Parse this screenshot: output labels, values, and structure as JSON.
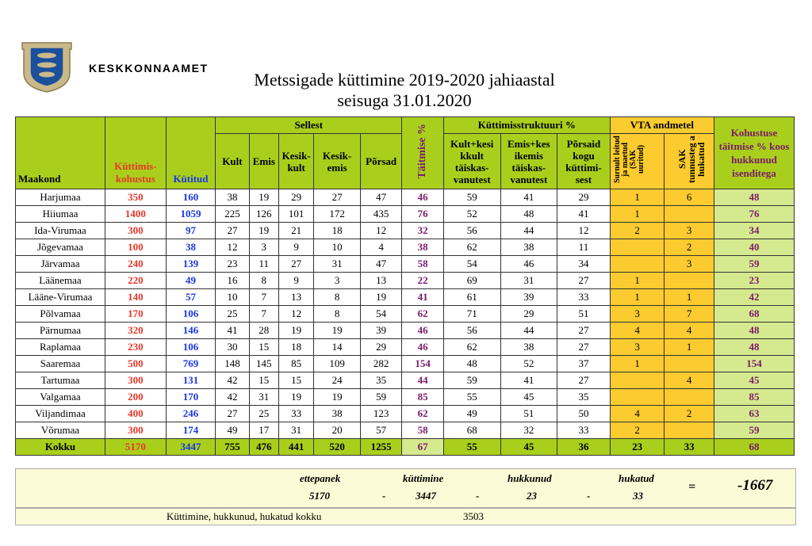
{
  "header": {
    "org_name": "KESKKONNAAMET",
    "title_line1": "Metssigade küttimine 2019-2020 jahiaastal",
    "title_line2": "seisuga 31.01.2020"
  },
  "colors": {
    "header_green": "#a9cf1c",
    "light_green": "#d5e98e",
    "orange": "#fbcb2f",
    "red": "#e8372a",
    "blue": "#1936e6",
    "purple": "#7b1a6b",
    "summary_bg": "#fcfbd7"
  },
  "table": {
    "group_headers": {
      "sellest": "Sellest",
      "kyttimisstruktuur": "Küttimisstruktuuri %",
      "vta": "VTA andmetel"
    },
    "columns": {
      "maakond": "Maakond",
      "kohustus": "Küttimis- kohustus",
      "kytitud": "Kütitud",
      "kult": "Kult",
      "emis": "Emis",
      "keskikult": "Kesik- kult",
      "keskiemis": "Kesik- emis",
      "porsad": "Põrsad",
      "taitmise": "Täitmise %",
      "kult_kesikult": "Kult+kesi kkult täiskas- vanutest",
      "emis_keskiemis": "Emis+kes ikemis täiskas- vanutest",
      "porsaid": "Põrsaid kogu küttimi- sest",
      "surnult": "Surnult leitud ja maetud (SAK uuritud)",
      "sak_hukatud": "SAK tunnusteg a hukatud",
      "kohustuse_taitmise": "Kohustuse täitmise % koos hukkunud isenditega"
    },
    "rows": [
      {
        "maakond": "Harjumaa",
        "kohustus": "350",
        "kytitud": "160",
        "kult": "38",
        "emis": "19",
        "keskikult": "29",
        "keskiemis": "27",
        "porsad": "47",
        "taitmise": "46",
        "kk": "59",
        "ek": "41",
        "po": "29",
        "surnult": "1",
        "hukatud": "6",
        "kohustus_pct": "48"
      },
      {
        "maakond": "Hiiumaa",
        "kohustus": "1400",
        "kytitud": "1059",
        "kult": "225",
        "emis": "126",
        "keskikult": "101",
        "keskiemis": "172",
        "porsad": "435",
        "taitmise": "76",
        "kk": "52",
        "ek": "48",
        "po": "41",
        "surnult": "1",
        "hukatud": "",
        "kohustus_pct": "76"
      },
      {
        "maakond": "Ida-Virumaa",
        "kohustus": "300",
        "kytitud": "97",
        "kult": "27",
        "emis": "19",
        "keskikult": "21",
        "keskiemis": "18",
        "porsad": "12",
        "taitmise": "32",
        "kk": "56",
        "ek": "44",
        "po": "12",
        "surnult": "2",
        "hukatud": "3",
        "kohustus_pct": "34"
      },
      {
        "maakond": "Jõgevamaa",
        "kohustus": "100",
        "kytitud": "38",
        "kult": "12",
        "emis": "3",
        "keskikult": "9",
        "keskiemis": "10",
        "porsad": "4",
        "taitmise": "38",
        "kk": "62",
        "ek": "38",
        "po": "11",
        "surnult": "",
        "hukatud": "2",
        "kohustus_pct": "40"
      },
      {
        "maakond": "Järvamaa",
        "kohustus": "240",
        "kytitud": "139",
        "kult": "23",
        "emis": "11",
        "keskikult": "27",
        "keskiemis": "31",
        "porsad": "47",
        "taitmise": "58",
        "kk": "54",
        "ek": "46",
        "po": "34",
        "surnult": "",
        "hukatud": "3",
        "kohustus_pct": "59"
      },
      {
        "maakond": "Läänemaa",
        "kohustus": "220",
        "kytitud": "49",
        "kult": "16",
        "emis": "8",
        "keskikult": "9",
        "keskiemis": "3",
        "porsad": "13",
        "taitmise": "22",
        "kk": "69",
        "ek": "31",
        "po": "27",
        "surnult": "1",
        "hukatud": "",
        "kohustus_pct": "23"
      },
      {
        "maakond": "Lääne-Virumaa",
        "kohustus": "140",
        "kytitud": "57",
        "kult": "10",
        "emis": "7",
        "keskikult": "13",
        "keskiemis": "8",
        "porsad": "19",
        "taitmise": "41",
        "kk": "61",
        "ek": "39",
        "po": "33",
        "surnult": "1",
        "hukatud": "1",
        "kohustus_pct": "42"
      },
      {
        "maakond": "Põlvamaa",
        "kohustus": "170",
        "kytitud": "106",
        "kult": "25",
        "emis": "7",
        "keskikult": "12",
        "keskiemis": "8",
        "porsad": "54",
        "taitmise": "62",
        "kk": "71",
        "ek": "29",
        "po": "51",
        "surnult": "3",
        "hukatud": "7",
        "kohustus_pct": "68"
      },
      {
        "maakond": "Pärnumaa",
        "kohustus": "320",
        "kytitud": "146",
        "kult": "41",
        "emis": "28",
        "keskikult": "19",
        "keskiemis": "19",
        "porsad": "39",
        "taitmise": "46",
        "kk": "56",
        "ek": "44",
        "po": "27",
        "surnult": "4",
        "hukatud": "4",
        "kohustus_pct": "48"
      },
      {
        "maakond": "Raplamaa",
        "kohustus": "230",
        "kytitud": "106",
        "kult": "30",
        "emis": "15",
        "keskikult": "18",
        "keskiemis": "14",
        "porsad": "29",
        "taitmise": "46",
        "kk": "62",
        "ek": "38",
        "po": "27",
        "surnult": "3",
        "hukatud": "1",
        "kohustus_pct": "48"
      },
      {
        "maakond": "Saaremaa",
        "kohustus": "500",
        "kytitud": "769",
        "kult": "148",
        "emis": "145",
        "keskikult": "85",
        "keskiemis": "109",
        "porsad": "282",
        "taitmise": "154",
        "kk": "48",
        "ek": "52",
        "po": "37",
        "surnult": "1",
        "hukatud": "",
        "kohustus_pct": "154"
      },
      {
        "maakond": "Tartumaa",
        "kohustus": "300",
        "kytitud": "131",
        "kult": "42",
        "emis": "15",
        "keskikult": "15",
        "keskiemis": "24",
        "porsad": "35",
        "taitmise": "44",
        "kk": "59",
        "ek": "41",
        "po": "27",
        "surnult": "",
        "hukatud": "4",
        "kohustus_pct": "45"
      },
      {
        "maakond": "Valgamaa",
        "kohustus": "200",
        "kytitud": "170",
        "kult": "42",
        "emis": "31",
        "keskikult": "19",
        "keskiemis": "19",
        "porsad": "59",
        "taitmise": "85",
        "kk": "55",
        "ek": "45",
        "po": "35",
        "surnult": "",
        "hukatud": "",
        "kohustus_pct": "85"
      },
      {
        "maakond": "Viljandimaa",
        "kohustus": "400",
        "kytitud": "246",
        "kult": "27",
        "emis": "25",
        "keskikult": "33",
        "keskiemis": "38",
        "porsad": "123",
        "taitmise": "62",
        "kk": "49",
        "ek": "51",
        "po": "50",
        "surnult": "4",
        "hukatud": "2",
        "kohustus_pct": "63"
      },
      {
        "maakond": "Võrumaa",
        "kohustus": "300",
        "kytitud": "174",
        "kult": "49",
        "emis": "17",
        "keskikult": "31",
        "keskiemis": "20",
        "porsad": "57",
        "taitmise": "58",
        "kk": "68",
        "ek": "32",
        "po": "33",
        "surnult": "2",
        "hukatud": "",
        "kohustus_pct": "59"
      }
    ],
    "total": {
      "maakond": "Kokku",
      "kohustus": "5170",
      "kytitud": "3447",
      "kult": "755",
      "emis": "476",
      "keskikult": "441",
      "keskiemis": "520",
      "porsad": "1255",
      "taitmise": "67",
      "kk": "55",
      "ek": "45",
      "po": "36",
      "surnult": "23",
      "hukatud": "33",
      "kohustus_pct": "68"
    }
  },
  "summary": {
    "ettepanek_label": "ettepanek",
    "ettepanek_value": "5170",
    "kyttimine_label": "küttimine",
    "kyttimine_value": "3447",
    "hukkunud_label": "hukkunud",
    "hukkunud_value": "23",
    "hukatud_label": "hukatud",
    "hukatud_value": "33",
    "minus": "-",
    "equals": "=",
    "result": "-1667",
    "total_label": "Küttimine, hukkunud, hukatud kokku",
    "total_value": "3503"
  }
}
